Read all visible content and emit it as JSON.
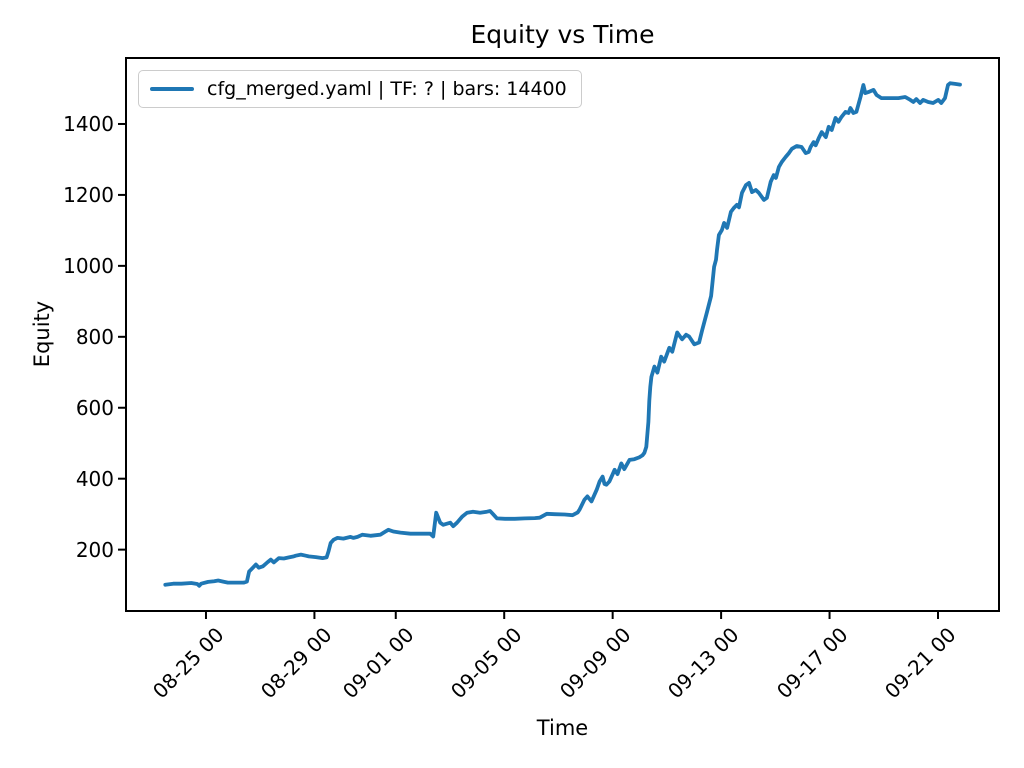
{
  "title": "Equity vs Time",
  "axes": {
    "xlabel": "Time",
    "ylabel": "Equity"
  },
  "legend": {
    "label": "cfg_merged.yaml | TF: ? | bars: 14400",
    "position": "upper left"
  },
  "colors": {
    "line": "#1f77b4",
    "spine": "#000000",
    "legend_border": "#cccccc"
  },
  "chart_data": {
    "type": "line",
    "title": "Equity vs Time",
    "xlabel": "Time",
    "ylabel": "Equity",
    "grid": false,
    "legend_position": "upper left",
    "x_unit": "days since 08-23 12:00",
    "xlim": [
      -1.45,
      30.75
    ],
    "ylim": [
      27,
      1586
    ],
    "y_ticks": [
      200,
      400,
      600,
      800,
      1000,
      1200,
      1400
    ],
    "x_ticks": [
      {
        "t": 1.5,
        "label": "08-25 00"
      },
      {
        "t": 5.5,
        "label": "08-29 00"
      },
      {
        "t": 8.5,
        "label": "09-01 00"
      },
      {
        "t": 12.5,
        "label": "09-05 00"
      },
      {
        "t": 16.5,
        "label": "09-09 00"
      },
      {
        "t": 20.5,
        "label": "09-13 00"
      },
      {
        "t": 24.5,
        "label": "09-17 00"
      },
      {
        "t": 28.5,
        "label": "09-21 00"
      }
    ],
    "series": [
      {
        "name": "cfg_merged.yaml | TF: ? | bars: 14400",
        "color": "#1f77b4",
        "points": [
          [
            0.0,
            101
          ],
          [
            0.29,
            104
          ],
          [
            0.59,
            104
          ],
          [
            0.96,
            106
          ],
          [
            1.18,
            103
          ],
          [
            1.25,
            98
          ],
          [
            1.32,
            104
          ],
          [
            1.58,
            109
          ],
          [
            1.8,
            111
          ],
          [
            1.95,
            113
          ],
          [
            2.13,
            110
          ],
          [
            2.31,
            107
          ],
          [
            2.53,
            107
          ],
          [
            2.72,
            107
          ],
          [
            2.9,
            107
          ],
          [
            3.01,
            110
          ],
          [
            3.09,
            138
          ],
          [
            3.23,
            149
          ],
          [
            3.34,
            158
          ],
          [
            3.45,
            149
          ],
          [
            3.6,
            153
          ],
          [
            3.78,
            165
          ],
          [
            3.89,
            172
          ],
          [
            4.0,
            164
          ],
          [
            4.19,
            176
          ],
          [
            4.37,
            175
          ],
          [
            4.56,
            178
          ],
          [
            4.74,
            181
          ],
          [
            4.81,
            183
          ],
          [
            5.0,
            186
          ],
          [
            5.18,
            183
          ],
          [
            5.29,
            181
          ],
          [
            5.55,
            179
          ],
          [
            5.8,
            176
          ],
          [
            5.95,
            178
          ],
          [
            6.02,
            195
          ],
          [
            6.1,
            219
          ],
          [
            6.21,
            228
          ],
          [
            6.35,
            233
          ],
          [
            6.57,
            231
          ],
          [
            6.83,
            236
          ],
          [
            6.94,
            233
          ],
          [
            7.09,
            236
          ],
          [
            7.27,
            242
          ],
          [
            7.57,
            239
          ],
          [
            7.93,
            242
          ],
          [
            8.12,
            251
          ],
          [
            8.23,
            256
          ],
          [
            8.41,
            251
          ],
          [
            8.67,
            248
          ],
          [
            9.04,
            245
          ],
          [
            9.4,
            245
          ],
          [
            9.77,
            245
          ],
          [
            9.88,
            237
          ],
          [
            9.99,
            304
          ],
          [
            10.14,
            276
          ],
          [
            10.25,
            270
          ],
          [
            10.51,
            276
          ],
          [
            10.62,
            266
          ],
          [
            10.76,
            276
          ],
          [
            10.95,
            293
          ],
          [
            11.13,
            304
          ],
          [
            11.35,
            307
          ],
          [
            11.61,
            304
          ],
          [
            11.86,
            307
          ],
          [
            11.98,
            309
          ],
          [
            12.09,
            300
          ],
          [
            12.23,
            288
          ],
          [
            12.53,
            287
          ],
          [
            12.89,
            287
          ],
          [
            13.26,
            288
          ],
          [
            13.63,
            289
          ],
          [
            13.81,
            290
          ],
          [
            14.07,
            301
          ],
          [
            14.36,
            300
          ],
          [
            14.73,
            299
          ],
          [
            15.02,
            297
          ],
          [
            15.21,
            305
          ],
          [
            15.28,
            313
          ],
          [
            15.46,
            341
          ],
          [
            15.57,
            350
          ],
          [
            15.72,
            336
          ],
          [
            15.91,
            369
          ],
          [
            16.02,
            392
          ],
          [
            16.13,
            406
          ],
          [
            16.2,
            385
          ],
          [
            16.27,
            383
          ],
          [
            16.38,
            392
          ],
          [
            16.49,
            411
          ],
          [
            16.57,
            425
          ],
          [
            16.68,
            413
          ],
          [
            16.82,
            443
          ],
          [
            16.93,
            427
          ],
          [
            17.12,
            453
          ],
          [
            17.3,
            455
          ],
          [
            17.48,
            460
          ],
          [
            17.6,
            466
          ],
          [
            17.67,
            473
          ],
          [
            17.74,
            490
          ],
          [
            17.82,
            560
          ],
          [
            17.85,
            620
          ],
          [
            17.89,
            659
          ],
          [
            17.93,
            687
          ],
          [
            18.04,
            716
          ],
          [
            18.15,
            699
          ],
          [
            18.29,
            744
          ],
          [
            18.4,
            730
          ],
          [
            18.59,
            769
          ],
          [
            18.7,
            758
          ],
          [
            18.88,
            812
          ],
          [
            19.06,
            793
          ],
          [
            19.21,
            806
          ],
          [
            19.32,
            801
          ],
          [
            19.51,
            779
          ],
          [
            19.69,
            784
          ],
          [
            19.8,
            818
          ],
          [
            19.98,
            870
          ],
          [
            20.13,
            915
          ],
          [
            20.24,
            997
          ],
          [
            20.31,
            1017
          ],
          [
            20.35,
            1045
          ],
          [
            20.42,
            1087
          ],
          [
            20.53,
            1101
          ],
          [
            20.61,
            1121
          ],
          [
            20.72,
            1107
          ],
          [
            20.86,
            1152
          ],
          [
            20.97,
            1163
          ],
          [
            21.08,
            1172
          ],
          [
            21.16,
            1165
          ],
          [
            21.27,
            1206
          ],
          [
            21.42,
            1228
          ],
          [
            21.53,
            1234
          ],
          [
            21.64,
            1208
          ],
          [
            21.78,
            1214
          ],
          [
            21.89,
            1206
          ],
          [
            22.08,
            1186
          ],
          [
            22.19,
            1192
          ],
          [
            22.33,
            1237
          ],
          [
            22.44,
            1256
          ],
          [
            22.52,
            1248
          ],
          [
            22.63,
            1279
          ],
          [
            22.74,
            1293
          ],
          [
            22.88,
            1307
          ],
          [
            23.0,
            1318
          ],
          [
            23.11,
            1330
          ],
          [
            23.29,
            1338
          ],
          [
            23.47,
            1335
          ],
          [
            23.62,
            1318
          ],
          [
            23.73,
            1321
          ],
          [
            23.8,
            1335
          ],
          [
            23.91,
            1349
          ],
          [
            23.99,
            1340
          ],
          [
            24.1,
            1360
          ],
          [
            24.21,
            1377
          ],
          [
            24.36,
            1363
          ],
          [
            24.47,
            1392
          ],
          [
            24.58,
            1383
          ],
          [
            24.72,
            1417
          ],
          [
            24.83,
            1406
          ],
          [
            24.94,
            1420
          ],
          [
            25.09,
            1434
          ],
          [
            25.2,
            1431
          ],
          [
            25.27,
            1445
          ],
          [
            25.38,
            1431
          ],
          [
            25.49,
            1434
          ],
          [
            25.64,
            1476
          ],
          [
            25.75,
            1510
          ],
          [
            25.82,
            1487
          ],
          [
            25.93,
            1490
          ],
          [
            26.12,
            1496
          ],
          [
            26.23,
            1482
          ],
          [
            26.41,
            1473
          ],
          [
            26.67,
            1473
          ],
          [
            27.04,
            1473
          ],
          [
            27.29,
            1476
          ],
          [
            27.48,
            1468
          ],
          [
            27.59,
            1462
          ],
          [
            27.7,
            1470
          ],
          [
            27.84,
            1459
          ],
          [
            27.95,
            1468
          ],
          [
            28.14,
            1462
          ],
          [
            28.32,
            1459
          ],
          [
            28.51,
            1468
          ],
          [
            28.62,
            1459
          ],
          [
            28.76,
            1473
          ],
          [
            28.87,
            1510
          ],
          [
            28.95,
            1515
          ],
          [
            29.13,
            1513
          ],
          [
            29.31,
            1511
          ]
        ]
      }
    ]
  }
}
